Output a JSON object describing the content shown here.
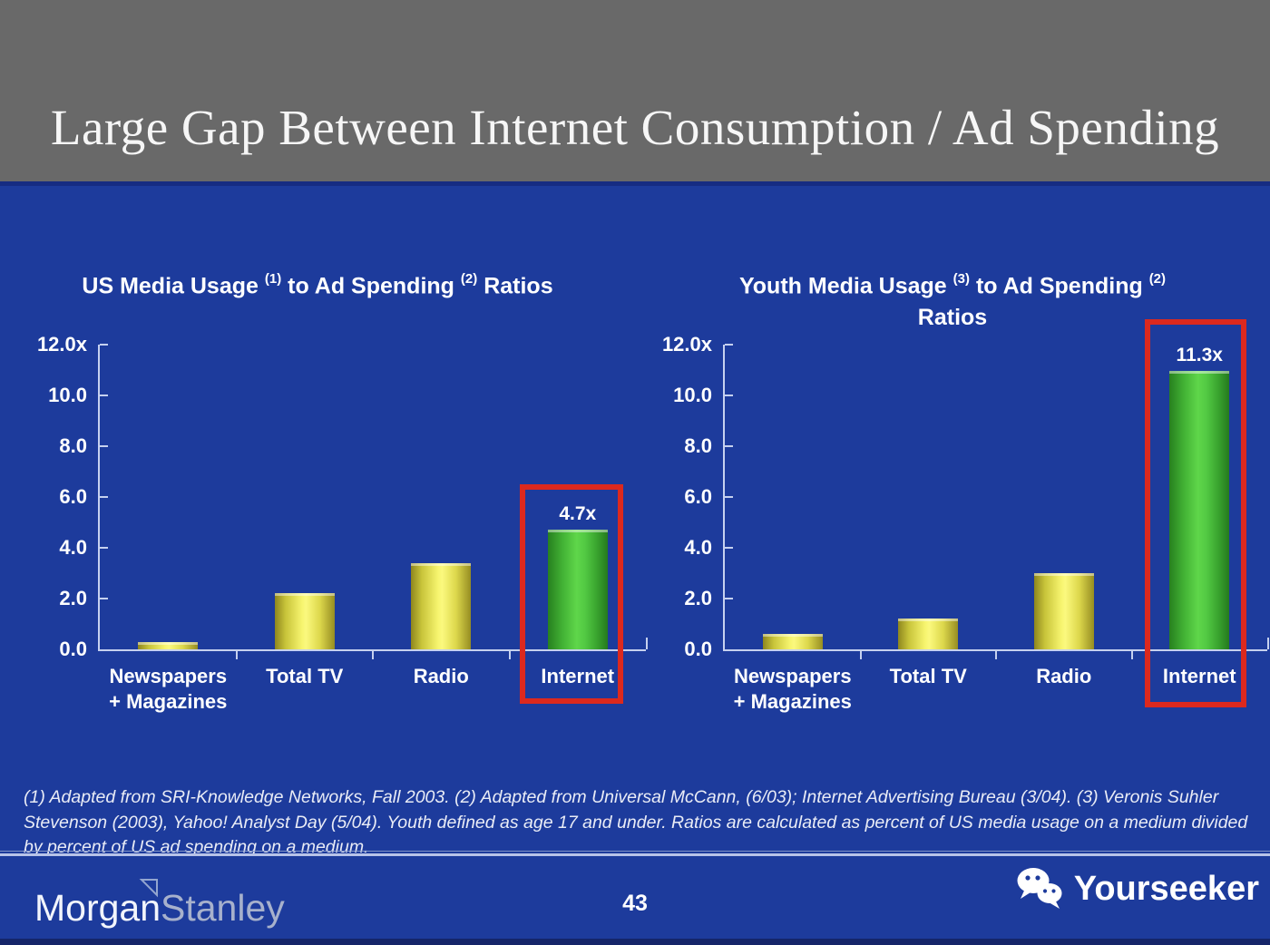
{
  "slide": {
    "title": "Large Gap Between Internet Consumption / Ad Spending",
    "page_number": "43",
    "footnote": "(1) Adapted from SRI-Knowledge Networks, Fall 2003.  (2) Adapted from Universal McCann, (6/03); Internet Advertising Bureau (3/04). (3) Veronis Suhler Stevenson (2003), Yahoo! Analyst Day (5/04).  Youth defined as age 17 and under.  Ratios are calculated as percent of US media usage on a medium divided by percent of US ad spending on a medium.",
    "brand": {
      "word1": "Morgan",
      "word2": "Stanley"
    },
    "watermark": {
      "label": "Yourseeker",
      "icon": "wechat-icon"
    }
  },
  "colors": {
    "header_bg": "#696969",
    "body_bg": "#1d3b9c",
    "axis": "#c6d1ef",
    "bar_yellow": "#f2ee63",
    "bar_green": "#54cc43",
    "highlight_red": "#dc291e",
    "title_text": "#f6f6f6"
  },
  "chart_data": [
    {
      "type": "bar",
      "title": "US Media Usage (1) to Ad Spending (2) Ratios",
      "title_parts": {
        "pre": "US Media Usage",
        "sup1": "(1)",
        "mid": "to Ad Spending",
        "sup2": "(2)",
        "post": "Ratios",
        "line2": ""
      },
      "categories": [
        {
          "line1": "Newspapers",
          "line2": "+ Magazines"
        },
        {
          "line1": "Total TV",
          "line2": ""
        },
        {
          "line1": "Radio",
          "line2": ""
        },
        {
          "line1": "Internet",
          "line2": ""
        }
      ],
      "values": [
        0.3,
        2.2,
        3.4,
        4.7
      ],
      "bar_colors": [
        "yellow",
        "yellow",
        "yellow",
        "green"
      ],
      "data_labels": [
        "",
        "",
        "",
        "4.7x"
      ],
      "yticks": [
        "12.0x",
        "10.0",
        "8.0",
        "6.0",
        "4.0",
        "2.0",
        "0.0"
      ],
      "ylim": [
        0,
        12
      ],
      "grid": false,
      "legend": false,
      "highlighted_category": "Internet"
    },
    {
      "type": "bar",
      "title": "Youth Media Usage (3) to Ad Spending (2) Ratios",
      "title_parts": {
        "pre": "Youth Media Usage",
        "sup1": "(3)",
        "mid": "to Ad Spending",
        "sup2": "(2)",
        "post": "",
        "line2": "Ratios"
      },
      "categories": [
        {
          "line1": "Newspapers",
          "line2": "+ Magazines"
        },
        {
          "line1": "Total TV",
          "line2": ""
        },
        {
          "line1": "Radio",
          "line2": ""
        },
        {
          "line1": "Internet",
          "line2": ""
        }
      ],
      "values": [
        0.6,
        1.2,
        3.0,
        11.3
      ],
      "bar_colors": [
        "yellow",
        "yellow",
        "yellow",
        "green"
      ],
      "data_labels": [
        "",
        "",
        "",
        "11.3x"
      ],
      "yticks": [
        "12.0x",
        "10.0",
        "8.0",
        "6.0",
        "4.0",
        "2.0",
        "0.0"
      ],
      "ylim": [
        0,
        12
      ],
      "grid": false,
      "legend": false,
      "highlighted_category": "Internet"
    }
  ]
}
